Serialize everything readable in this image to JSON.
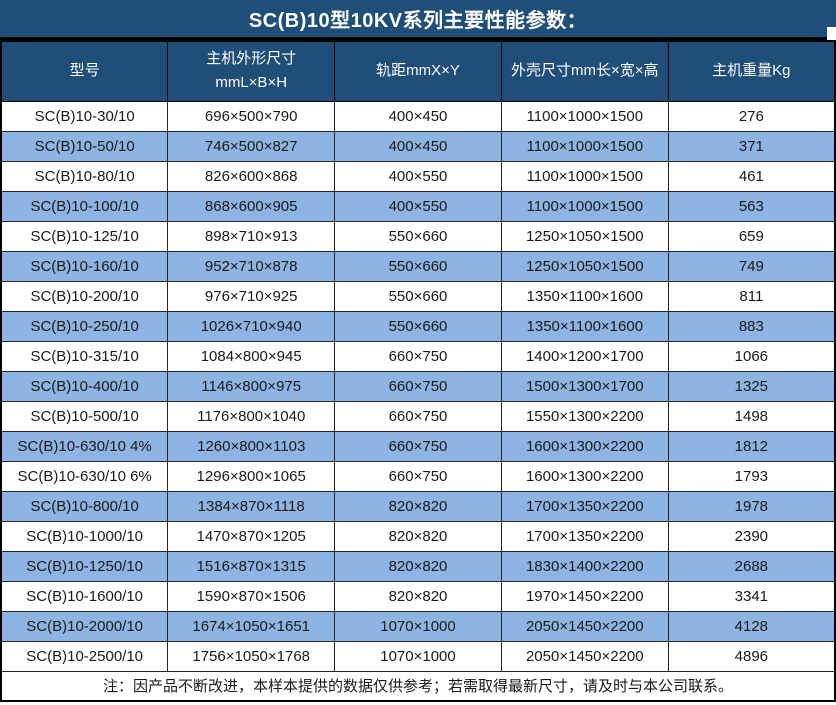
{
  "title": "SC(B)10型10KV系列主要性能参数：",
  "table": {
    "columns": [
      "型号",
      "主机外形尺寸\nmmL×B×H",
      "轨距mmX×Y",
      "外壳尺寸mm长×宽×高",
      "主机重量Kg"
    ],
    "rows": [
      [
        "SC(B)10-30/10",
        "696×500×790",
        "400×450",
        "1100×1000×1500",
        "276"
      ],
      [
        "SC(B)10-50/10",
        "746×500×827",
        "400×450",
        "1100×1000×1500",
        "371"
      ],
      [
        "SC(B)10-80/10",
        "826×600×868",
        "400×550",
        "1100×1000×1500",
        "461"
      ],
      [
        "SC(B)10-100/10",
        "868×600×905",
        "400×550",
        "1100×1000×1500",
        "563"
      ],
      [
        "SC(B)10-125/10",
        "898×710×913",
        "550×660",
        "1250×1050×1500",
        "659"
      ],
      [
        "SC(B)10-160/10",
        "952×710×878",
        "550×660",
        "1250×1050×1500",
        "749"
      ],
      [
        "SC(B)10-200/10",
        "976×710×925",
        "550×660",
        "1350×1100×1600",
        "811"
      ],
      [
        "SC(B)10-250/10",
        "1026×710×940",
        "550×660",
        "1350×1100×1600",
        "883"
      ],
      [
        "SC(B)10-315/10",
        "1084×800×945",
        "660×750",
        "1400×1200×1700",
        "1066"
      ],
      [
        "SC(B)10-400/10",
        "1146×800×975",
        "660×750",
        "1500×1300×1700",
        "1325"
      ],
      [
        "SC(B)10-500/10",
        "1176×800×1040",
        "660×750",
        "1550×1300×2200",
        "1498"
      ],
      [
        "SC(B)10-630/10 4%",
        "1260×800×1103",
        "660×750",
        "1600×1300×2200",
        "1812"
      ],
      [
        "SC(B)10-630/10 6%",
        "1296×800×1065",
        "660×750",
        "1600×1300×2200",
        "1793"
      ],
      [
        "SC(B)10-800/10",
        "1384×870×1118",
        "820×820",
        "1700×1350×2200",
        "1978"
      ],
      [
        "SC(B)10-1000/10",
        "1470×870×1205",
        "820×820",
        "1700×1350×2200",
        "2390"
      ],
      [
        "SC(B)10-1250/10",
        "1516×870×1315",
        "820×820",
        "1830×1400×2200",
        "2688"
      ],
      [
        "SC(B)10-1600/10",
        "1590×870×1506",
        "820×820",
        "1970×1450×2200",
        "3341"
      ],
      [
        "SC(B)10-2000/10",
        "1674×1050×1651",
        "1070×1000",
        "2050×1450×2200",
        "4128"
      ],
      [
        "SC(B)10-2500/10",
        "1756×1050×1768",
        "1070×1000",
        "2050×1450×2200",
        "4896"
      ]
    ]
  },
  "note": "注：因产品不断改进，本样本提供的数据仅供参考；若需取得最新尺寸，请及时与本公司联系。",
  "colors": {
    "header_bg": "#1F4E79",
    "row_alt_bg": "#8DB4E2",
    "row_bg": "#FFFFFF",
    "border": "#262626",
    "header_text": "#FFFFFF",
    "body_text": "#1A1A1A"
  }
}
